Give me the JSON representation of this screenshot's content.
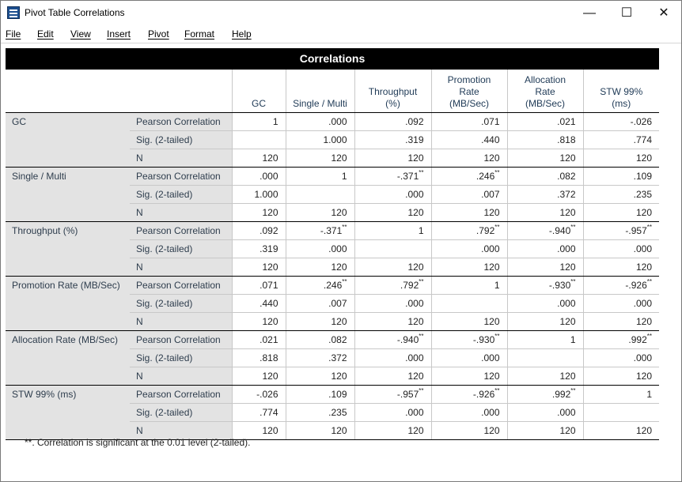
{
  "window": {
    "title": "Pivot Table Correlations",
    "controls": {
      "minimize": "—",
      "maximize": "☐",
      "close": "✕"
    }
  },
  "menu": [
    "File",
    "Edit",
    "View",
    "Insert",
    "Pivot",
    "Format",
    "Help"
  ],
  "table": {
    "title": "Correlations",
    "columns": [
      [
        "GC"
      ],
      [
        "Single / Multi"
      ],
      [
        "Throughput",
        "(%)"
      ],
      [
        "Promotion",
        "Rate",
        "(MB/Sec)"
      ],
      [
        "Allocation",
        "Rate",
        "(MB/Sec)"
      ],
      [
        "STW 99%",
        "(ms)"
      ]
    ],
    "stat_labels": [
      "Pearson Correlation",
      "Sig. (2-tailed)",
      "N"
    ],
    "groups": [
      {
        "label": "GC",
        "rows": [
          [
            "1",
            ".000",
            ".092",
            ".071",
            ".021",
            "-.026"
          ],
          [
            "",
            "1.000",
            ".319",
            ".440",
            ".818",
            ".774"
          ],
          [
            "120",
            "120",
            "120",
            "120",
            "120",
            "120"
          ]
        ]
      },
      {
        "label": "Single / Multi",
        "rows": [
          [
            ".000",
            "1",
            "-.371**",
            ".246**",
            ".082",
            ".109"
          ],
          [
            "1.000",
            "",
            ".000",
            ".007",
            ".372",
            ".235"
          ],
          [
            "120",
            "120",
            "120",
            "120",
            "120",
            "120"
          ]
        ]
      },
      {
        "label": "Throughput (%)",
        "rows": [
          [
            ".092",
            "-.371**",
            "1",
            ".792**",
            "-.940**",
            "-.957**"
          ],
          [
            ".319",
            ".000",
            "",
            ".000",
            ".000",
            ".000"
          ],
          [
            "120",
            "120",
            "120",
            "120",
            "120",
            "120"
          ]
        ]
      },
      {
        "label": "Promotion Rate (MB/Sec)",
        "rows": [
          [
            ".071",
            ".246**",
            ".792**",
            "1",
            "-.930**",
            "-.926**"
          ],
          [
            ".440",
            ".007",
            ".000",
            "",
            ".000",
            ".000"
          ],
          [
            "120",
            "120",
            "120",
            "120",
            "120",
            "120"
          ]
        ]
      },
      {
        "label": "Allocation Rate (MB/Sec)",
        "rows": [
          [
            ".021",
            ".082",
            "-.940**",
            "-.930**",
            "1",
            ".992**"
          ],
          [
            ".818",
            ".372",
            ".000",
            ".000",
            "",
            ".000"
          ],
          [
            "120",
            "120",
            "120",
            "120",
            "120",
            "120"
          ]
        ]
      },
      {
        "label": "STW 99% (ms)",
        "rows": [
          [
            "-.026",
            ".109",
            "-.957**",
            "-.926**",
            ".992**",
            "1"
          ],
          [
            ".774",
            ".235",
            ".000",
            ".000",
            ".000",
            ""
          ],
          [
            "120",
            "120",
            "120",
            "120",
            "120",
            "120"
          ]
        ]
      }
    ],
    "footnote": "**. Correlation is significant at the 0.01 level (2-tailed)."
  }
}
